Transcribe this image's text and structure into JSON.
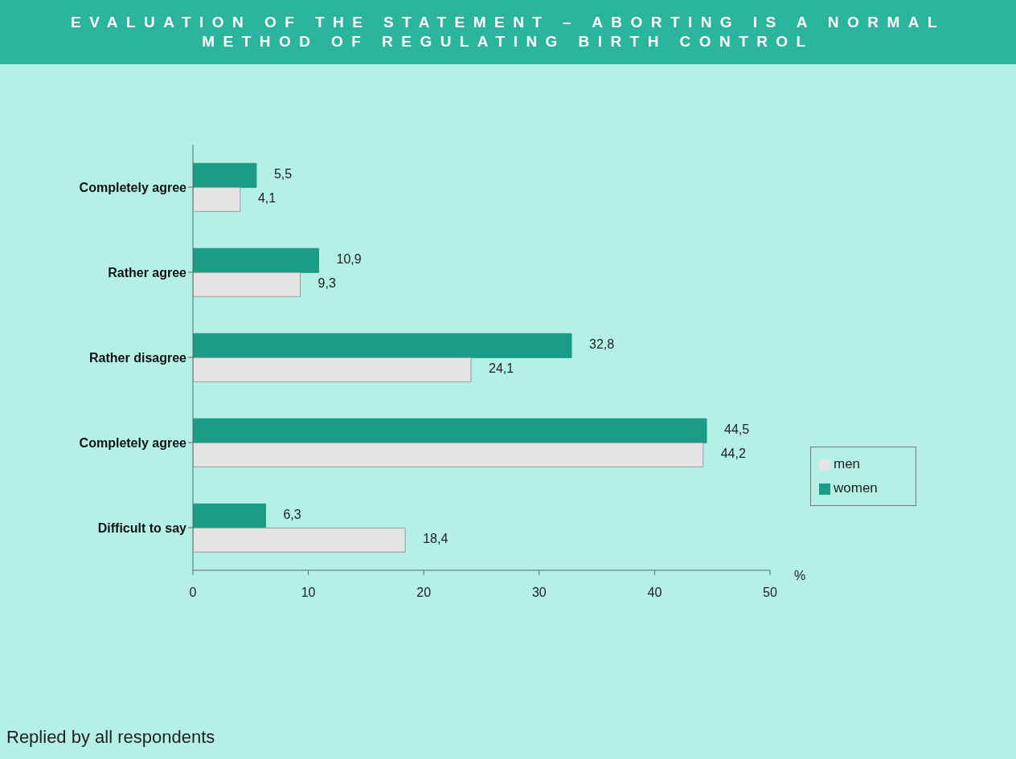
{
  "chart_data": {
    "type": "bar",
    "orientation": "horizontal",
    "title": "EVALUATION OF THE STATEMENT – ABORTING IS A NORMAL METHOD OF REGULATING BIRTH CONTROL",
    "categories": [
      "Completely agree",
      "Rather agree",
      "Rather disagree",
      "Completely agree",
      "Difficult to say"
    ],
    "series": [
      {
        "name": "women",
        "color": "#1a9c86",
        "values": [
          5.5,
          10.9,
          32.8,
          44.5,
          6.3
        ],
        "value_labels": [
          "5,5",
          "10,9",
          "32,8",
          "44,5",
          "6,3"
        ]
      },
      {
        "name": "men",
        "color": "#e4e4e4",
        "values": [
          4.1,
          9.3,
          24.1,
          44.2,
          18.4
        ],
        "value_labels": [
          "4,1",
          "9,3",
          "24,1",
          "44,2",
          "18,4"
        ]
      }
    ],
    "xlim": [
      0,
      50
    ],
    "xticks": [
      0,
      10,
      20,
      30,
      40,
      50
    ],
    "xlabel": "%",
    "legend": "bottom right",
    "grid": false,
    "annotations": [
      "Replied by all respondents"
    ]
  }
}
